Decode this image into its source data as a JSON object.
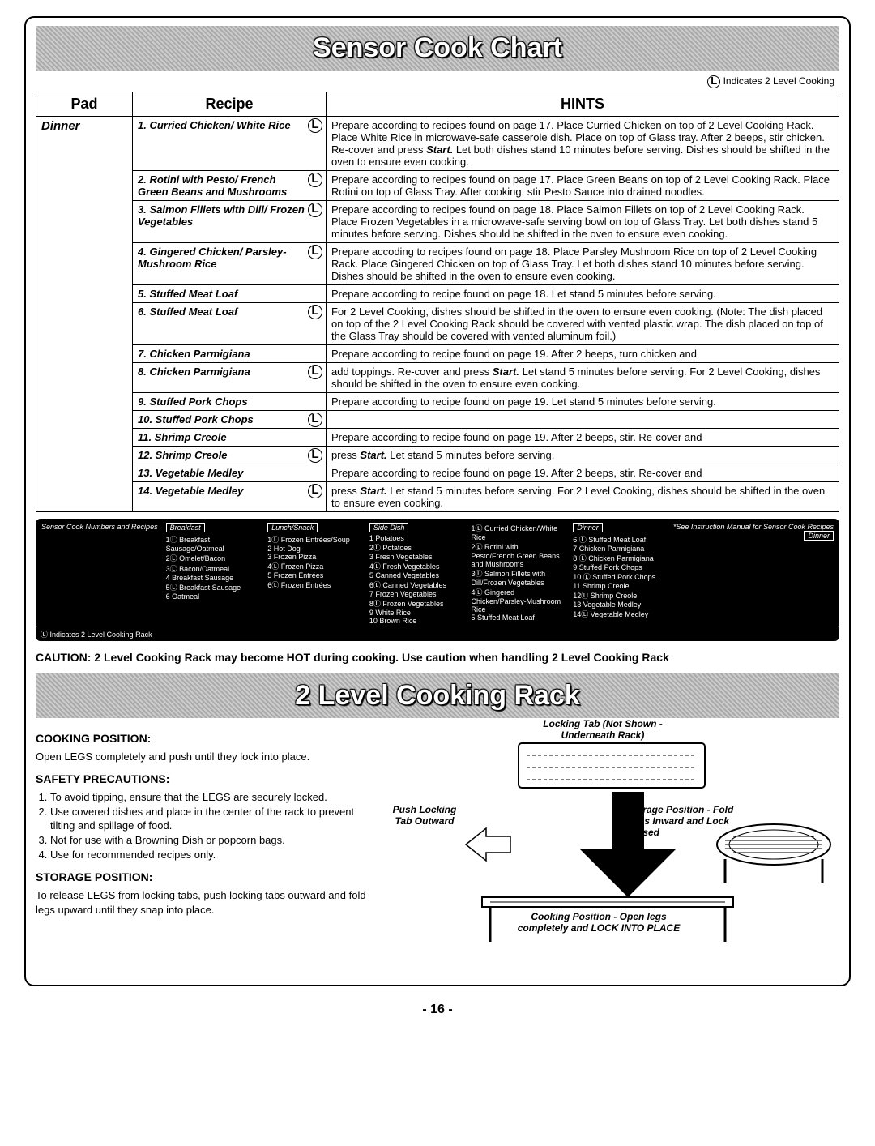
{
  "banner1": "Sensor Cook Chart",
  "banner2": "2 Level Cooking Rack",
  "two_level_note_prefix": "Indicates 2 Level Cooking",
  "table": {
    "headers": {
      "pad": "Pad",
      "recipe": "Recipe",
      "hints": "HINTS"
    },
    "pad": "Dinner",
    "rows": [
      {
        "recipe": "1. Curried Chicken/ White Rice",
        "two": true,
        "hint": "Prepare according to recipes found on page 17.  Place Curried Chicken on top of 2 Level Cooking Rack.  Place White Rice in microwave-safe casserole dish. Place on top of Glass tray.  After 2 beeps, stir chicken. Re-cover and press Start. Let both dishes stand 10 minutes before serving.  Dishes should be shifted in the oven to ensure even cooking."
      },
      {
        "recipe": "2. Rotini with Pesto/ French Green Beans and Mushrooms",
        "two": true,
        "hint": "Prepare according to recipes found on page 17. Place Green Beans on top of 2 Level Cooking Rack. Place Rotini on top of Glass Tray. After cooking, stir Pesto Sauce into drained noodles."
      },
      {
        "recipe": "3. Salmon Fillets with Dill/ Frozen Vegetables",
        "two": true,
        "hint": "Prepare according to recipes found on page 18. Place Salmon Fillets on top of 2 Level Cooking Rack. Place Frozen Vegetables in a microwave-safe serving bowl on top of Glass Tray.  Let both dishes stand 5 minutes before serving. Dishes should be shifted in the oven to ensure even cooking."
      },
      {
        "recipe": "4. Gingered Chicken/ Parsley-Mushroom Rice",
        "two": true,
        "hint": "Prepare accoding to recipes found on page 18. Place Parsley Mushroom Rice on top of 2 Level Cooking Rack. Place Gingered Chicken on top of Glass Tray. Let both dishes stand 10 minutes before serving. Dishes should be shifted in the oven to ensure even cooking."
      },
      {
        "recipe": "5. Stuffed Meat Loaf",
        "two": false,
        "hint": "Prepare according to recipe found on page 18. Let stand 5 minutes before serving."
      },
      {
        "recipe": "6. Stuffed Meat Loaf",
        "two": true,
        "hint": "For 2 Level Cooking, dishes should be shifted in the oven to ensure even cooking. (Note: The dish placed on top of the 2 Level Cooking Rack should be covered with vented plastic wrap. The dish placed on top of the Glass Tray should be covered with vented aluminum foil.)"
      },
      {
        "recipe": "7. Chicken Parmigiana",
        "two": false,
        "hint": "Prepare according to recipe found on page 19. After 2 beeps, turn chicken and"
      },
      {
        "recipe": "8. Chicken Parmigiana",
        "two": true,
        "hint": "add toppings.  Re-cover and press Start. Let stand 5 minutes before serving. For 2 Level Cooking, dishes should be shifted in the oven to ensure even cooking."
      },
      {
        "recipe": "9. Stuffed Pork Chops",
        "two": false,
        "hint": "Prepare according to recipe found on page 19. Let stand 5 minutes before serving."
      },
      {
        "recipe": "10. Stuffed Pork Chops",
        "two": true,
        "hint": ""
      },
      {
        "recipe": "11. Shrimp Creole",
        "two": false,
        "hint": "Prepare according to recipe found on page 19. After 2 beeps, stir. Re-cover and"
      },
      {
        "recipe": "12. Shrimp Creole",
        "two": true,
        "hint": "press Start. Let stand 5 minutes before serving."
      },
      {
        "recipe": "13. Vegetable Medley",
        "two": false,
        "hint": "Prepare according to recipe found on page 19. After 2 beeps, stir. Re-cover and"
      },
      {
        "recipe": "14. Vegetable Medley",
        "two": true,
        "hint": "press Start. Let stand 5 minutes before serving. For 2 Level Cooking, dishes should be shifted in the oven to ensure even cooking."
      }
    ]
  },
  "footer": {
    "title": "Sensor Cook Numbers and Recipes",
    "note": "*See Instruction Manual for Sensor Cook Recipes",
    "note2": "Ⓛ Indicates 2 Level Cooking Rack",
    "groups": [
      {
        "head": "Breakfast",
        "items": [
          "1Ⓛ Breakfast Sausage/Oatmeal",
          "2Ⓛ Omelet/Bacon",
          "3Ⓛ Bacon/Oatmeal",
          "4   Breakfast Sausage",
          "5Ⓛ Breakfast Sausage",
          "6   Oatmeal"
        ]
      },
      {
        "head": "Lunch/Snack",
        "items": [
          "1Ⓛ Frozen Entrées/Soup",
          "2   Hot Dog",
          "3   Frozen Pizza",
          "4Ⓛ Frozen Pizza",
          "5   Frozen Entrées",
          "6Ⓛ Frozen Entrées"
        ]
      },
      {
        "head": "Side Dish",
        "items": [
          "1   Potatoes",
          "2Ⓛ Potatoes",
          "3   Fresh Vegetables",
          "4Ⓛ Fresh Vegetables",
          "5   Canned Vegetables",
          "6Ⓛ Canned Vegetables",
          "7   Frozen Vegetables",
          "8Ⓛ Frozen Vegetables",
          "9   White Rice",
          "10  Brown Rice"
        ]
      },
      {
        "head": "",
        "items": [
          "1Ⓛ Curried Chicken/White Rice",
          "2Ⓛ Rotini with Pesto/French Green Beans and Mushrooms",
          "3Ⓛ Salmon Fillets with Dill/Frozen Vegetables",
          "4Ⓛ Gingered Chicken/Parsley-Mushroom Rice",
          "5   Stuffed Meat Loaf"
        ]
      },
      {
        "head": "Dinner",
        "items": [
          "6 Ⓛ Stuffed Meat Loaf",
          "7   Chicken Parmigiana",
          "8 Ⓛ Chicken Parmigiana",
          "9   Stuffed Pork Chops",
          "10 Ⓛ Stuffed Pork Chops",
          "11   Shrimp Creole",
          "12Ⓛ Shrimp Creole",
          "13   Vegetable Medley",
          "14Ⓛ Vegetable Medley"
        ]
      }
    ]
  },
  "caution": "CAUTION: 2 Level Cooking Rack may become HOT during cooking. Use caution when handling 2 Level Cooking Rack",
  "cooking": {
    "pos_head": "COOKING POSITION:",
    "pos_text": "Open LEGS completely and push until they lock into place.",
    "safety_head": "SAFETY PRECAUTIONS:",
    "safety_items": [
      "To avoid tipping, ensure that the LEGS are securely locked.",
      "Use covered dishes and place in the center of the rack to prevent tilting and spillage of food.",
      "Not for use with a Browning Dish or popcorn bags.",
      "Use for recommended recipes only."
    ],
    "storage_head": "STORAGE POSITION:",
    "storage_text": "To release LEGS from locking tabs, push locking tabs outward and fold legs upward until they snap into place."
  },
  "diagram": {
    "label1": "Push Locking Tab Outward",
    "label2": "Locking Tab (Not Shown - Underneath Rack)",
    "label3": "Storage Position - Fold Legs Inward and Lock Closed",
    "label4": "Cooking Position - Open legs completely and LOCK INTO PLACE"
  },
  "pagenum": "- 16 -"
}
